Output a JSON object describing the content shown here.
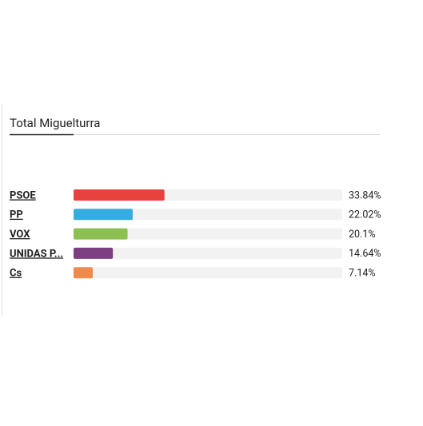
{
  "chart_data": {
    "type": "bar",
    "orientation": "horizontal",
    "title": "Total Miguelturra",
    "categories": [
      "PSOE",
      "PP",
      "VOX",
      "UNIDAS P...",
      "Cs"
    ],
    "values": [
      33.84,
      22.02,
      20.1,
      14.64,
      7.14
    ],
    "value_labels": [
      "33.84%",
      "22.02%",
      "20.1%",
      "14.64%",
      "7.14%"
    ],
    "colors": [
      "#e8423f",
      "#36ade1",
      "#8cc152",
      "#7d3f80",
      "#f08a4b"
    ],
    "xlim": [
      0,
      100
    ]
  }
}
